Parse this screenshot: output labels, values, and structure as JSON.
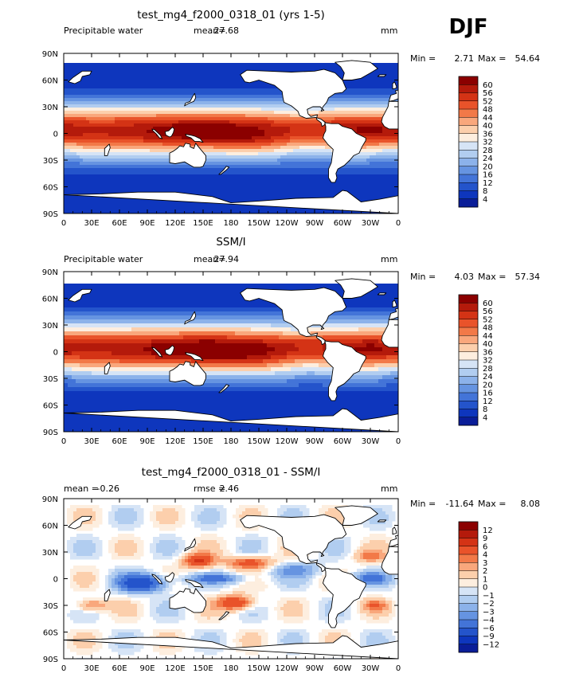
{
  "season": "DJF",
  "land_color": "#ffffff",
  "frame_color": "#000000",
  "chart_data": [
    {
      "type": "heatmap",
      "title": "test_mg4_f2000_0318_01 (yrs 1-5)",
      "left_string": "Precipitable water",
      "center_label": "mean=",
      "center_value": "27.68",
      "units": "mm",
      "min_label": "Min =",
      "min_value": "2.71",
      "max_label": "Max =",
      "max_value": "54.64",
      "mean": 27.68,
      "min": 2.71,
      "max": 54.64,
      "lon_ticks": [
        "0",
        "30E",
        "60E",
        "90E",
        "120E",
        "150E",
        "180",
        "150W",
        "120W",
        "90W",
        "60W",
        "30W",
        "0"
      ],
      "lat_ticks": [
        "90N",
        "60N",
        "30N",
        "0",
        "30S",
        "60S",
        "90S"
      ],
      "colorbar_labels": [
        "60",
        "56",
        "52",
        "48",
        "44",
        "40",
        "36",
        "32",
        "28",
        "24",
        "20",
        "16",
        "12",
        "8",
        "4"
      ],
      "colors": [
        "#8b0000",
        "#b41a0b",
        "#d43315",
        "#e9532a",
        "#f27948",
        "#f9a77c",
        "#fccfac",
        "#fdeedf",
        "#d6e4f6",
        "#b1cdf0",
        "#8cb2ea",
        "#6694e1",
        "#4374d8",
        "#2454cb",
        "#0e36bd",
        "#0a1d98"
      ]
    },
    {
      "type": "heatmap",
      "title": "SSM/I",
      "left_string": "Precipitable water",
      "center_label": "mean=",
      "center_value": "27.94",
      "units": "mm",
      "min_label": "Min =",
      "min_value": "4.03",
      "max_label": "Max =",
      "max_value": "57.34",
      "mean": 27.94,
      "min": 4.03,
      "max": 57.34,
      "lon_ticks": [
        "0",
        "30E",
        "60E",
        "90E",
        "120E",
        "150E",
        "180",
        "150W",
        "120W",
        "90W",
        "60W",
        "30W",
        "0"
      ],
      "lat_ticks": [
        "90N",
        "60N",
        "30N",
        "0",
        "30S",
        "60S",
        "90S"
      ],
      "colorbar_labels": [
        "60",
        "56",
        "52",
        "48",
        "44",
        "40",
        "36",
        "32",
        "28",
        "24",
        "20",
        "16",
        "12",
        "8",
        "4"
      ],
      "colors": [
        "#8b0000",
        "#b41a0b",
        "#d43315",
        "#e9532a",
        "#f27948",
        "#f9a77c",
        "#fccfac",
        "#fdeedf",
        "#d6e4f6",
        "#b1cdf0",
        "#8cb2ea",
        "#6694e1",
        "#4374d8",
        "#2454cb",
        "#0e36bd",
        "#0a1d98"
      ]
    },
    {
      "type": "heatmap",
      "title": "test_mg4_f2000_0318_01 - SSM/I",
      "left_string": "mean =",
      "left_value": "-0.26",
      "center_label": "rmse =",
      "center_value": "2.46",
      "units": "mm",
      "min_label": "Min =",
      "min_value": "-11.64",
      "max_label": "Max =",
      "max_value": "8.08",
      "mean": -0.26,
      "rmse": 2.46,
      "min": -11.64,
      "max": 8.08,
      "lon_ticks": [
        "0",
        "30E",
        "60E",
        "90E",
        "120E",
        "150E",
        "180",
        "150W",
        "120W",
        "90W",
        "60W",
        "30W",
        "0"
      ],
      "lat_ticks": [
        "90N",
        "60N",
        "30N",
        "0",
        "30S",
        "60S",
        "90S"
      ],
      "colorbar_labels": [
        "12",
        "9",
        "6",
        "4",
        "3",
        "2",
        "1",
        "0",
        "-1",
        "-2",
        "-3",
        "-4",
        "-6",
        "-9",
        "-12"
      ],
      "colors": [
        "#8b0000",
        "#b41a0b",
        "#d43315",
        "#e9532a",
        "#f27948",
        "#f9a77c",
        "#fccfac",
        "#fdeedf",
        "#d6e4f6",
        "#b1cdf0",
        "#8cb2ea",
        "#6694e1",
        "#4374d8",
        "#2454cb",
        "#0e36bd",
        "#0a1d98"
      ]
    }
  ]
}
